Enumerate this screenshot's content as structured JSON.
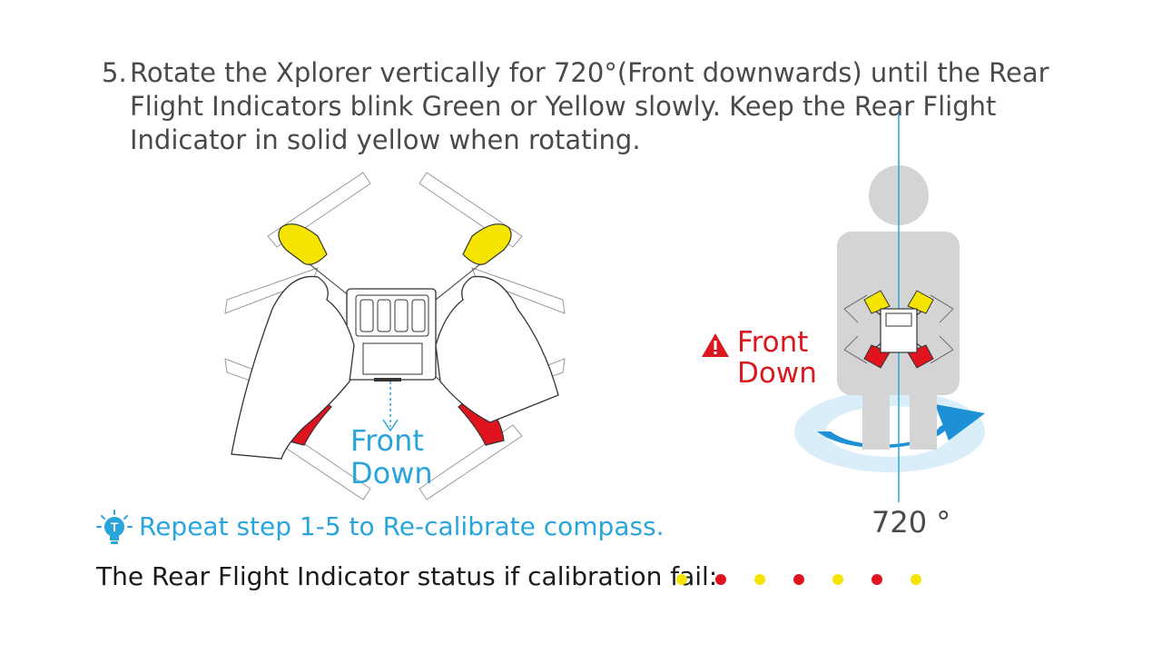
{
  "step": {
    "number": "5.",
    "text": "Rotate the Xplorer vertically for 720°(Front downwards) until the Rear Flight Indicators blink Green or Yellow slowly. Keep the Rear Flight Indicator in solid yellow when rotating."
  },
  "left_figure": {
    "label_line1": "Front",
    "label_line2": "Down",
    "arrow_color": "#2aa5dc"
  },
  "right_figure": {
    "label_line1": "Front",
    "label_line2": "Down",
    "degree": "720 °",
    "warning_icon": "warning-triangle-icon",
    "label_color": "#d9181f"
  },
  "tip": {
    "icon": "lightbulb-icon",
    "text": "Repeat step 1-5 to Re-calibrate compass."
  },
  "status": {
    "text": "The Rear Flight Indicator status if calibration fail:",
    "blink_sequence": [
      "yellow",
      "red",
      "yellow",
      "red",
      "yellow",
      "red",
      "yellow"
    ]
  },
  "colors": {
    "yellow": "#f5e400",
    "red": "#e0141e",
    "blue": "#2aa5dc",
    "body_text": "#4a4a4a"
  }
}
